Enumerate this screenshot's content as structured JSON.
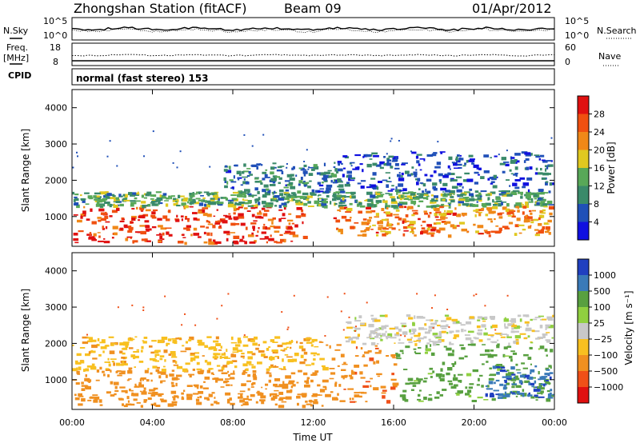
{
  "header": {
    "station": "Zhongshan Station (fitACF)",
    "beam": "Beam 09",
    "date": "01/Apr/2012"
  },
  "strips": {
    "nsky": {
      "label": "N.Sky",
      "tick_high": "10^5",
      "tick_low": "10^0"
    },
    "nsearch": {
      "label": "N.Search",
      "tick_high": "10^5",
      "tick_low": "10^0"
    },
    "freq": {
      "label_line1": "Freq.",
      "label_line2": "[MHz]",
      "tick_high": "18",
      "tick_low": "8"
    },
    "nave": {
      "label": "Nave",
      "tick_high": "60",
      "tick_low": "0"
    },
    "cpid": {
      "label": "CPID",
      "value": "normal (fast stereo) 153"
    }
  },
  "chart_data": [
    {
      "type": "heatmap",
      "title": "",
      "xlabel": "Time UT",
      "ylabel": "Slant Range [km]",
      "x_ticks": [
        "00:00",
        "04:00",
        "08:00",
        "12:00",
        "16:00",
        "20:00",
        "00:00"
      ],
      "y_ticks": [
        "1000",
        "2000",
        "3000",
        "4000"
      ],
      "xlim_hours": [
        0,
        24
      ],
      "ylim_km": [
        180,
        4500
      ],
      "colorbar": {
        "label": "Power [dB]",
        "ticks": [
          "4",
          "8",
          "12",
          "16",
          "20",
          "24",
          "28"
        ],
        "range": [
          0,
          30
        ],
        "colors": [
          "#1010e0",
          "#2050b8",
          "#3a8a6a",
          "#58a858",
          "#e0c820",
          "#f08818",
          "#f05010",
          "#e01010"
        ]
      },
      "echo_bands": [
        {
          "t0": 0.0,
          "t1": 11.5,
          "r0": 300,
          "r1": 1300,
          "level": 26
        },
        {
          "t0": 0.0,
          "t1": 24.0,
          "r0": 1300,
          "r1": 1700,
          "level": 12
        },
        {
          "t0": 13.0,
          "t1": 24.0,
          "r0": 500,
          "r1": 1300,
          "level": 22
        },
        {
          "t0": 13.0,
          "t1": 24.0,
          "r0": 1700,
          "r1": 2800,
          "level": 6
        },
        {
          "t0": 7.5,
          "t1": 13.0,
          "r0": 1700,
          "r1": 2500,
          "level": 8
        }
      ]
    },
    {
      "type": "heatmap",
      "title": "",
      "xlabel": "Time UT",
      "ylabel": "Slant Range [km]",
      "x_ticks": [
        "00:00",
        "04:00",
        "08:00",
        "12:00",
        "16:00",
        "20:00",
        "00:00"
      ],
      "y_ticks": [
        "1000",
        "2000",
        "3000",
        "4000"
      ],
      "xlim_hours": [
        0,
        24
      ],
      "ylim_km": [
        180,
        4500
      ],
      "colorbar": {
        "label": "Velocity [m s⁻¹]",
        "ticks": [
          "1000",
          "500",
          "100",
          "25",
          "−25",
          "−100",
          "−500",
          "−1000"
        ],
        "colors": [
          "#2040c0",
          "#3a7ab8",
          "#58a040",
          "#90d040",
          "#c8c8c8",
          "#f8c020",
          "#f09020",
          "#f05018",
          "#e01010"
        ]
      },
      "echo_bands": [
        {
          "t0": 0.0,
          "t1": 12.5,
          "r0": 300,
          "r1": 1300,
          "level": -300
        },
        {
          "t0": 0.0,
          "t1": 12.5,
          "r0": 1300,
          "r1": 2200,
          "level": -80
        },
        {
          "t0": 12.5,
          "t1": 16.0,
          "r0": 400,
          "r1": 2000,
          "level": -400
        },
        {
          "t0": 16.0,
          "t1": 24.0,
          "r0": 400,
          "r1": 2000,
          "level": 150
        },
        {
          "t0": 20.5,
          "t1": 24.0,
          "r0": 500,
          "r1": 1400,
          "level": 900
        },
        {
          "t0": 13.5,
          "t1": 24.0,
          "r0": 2000,
          "r1": 2800,
          "level": 0
        }
      ]
    }
  ]
}
